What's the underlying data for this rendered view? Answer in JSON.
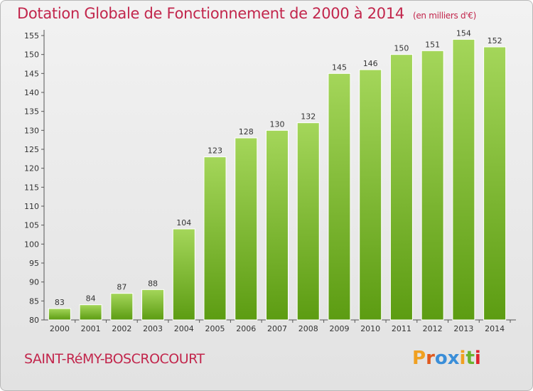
{
  "title": "Dotation Globale de Fonctionnement de 2000 à 2014",
  "subtitle": "(en milliers d'€)",
  "commune": "SAINT-RéMY-BOSCROCOURT",
  "logo": {
    "letters": [
      "P",
      "r",
      "o",
      "x",
      "i",
      "t",
      "i"
    ],
    "colors": [
      "#f0a020",
      "#e05a1e",
      "#3a8ed8",
      "#3a8ed8",
      "#f0a020",
      "#6ab42e",
      "#e0242c"
    ]
  },
  "chart_data": {
    "type": "bar",
    "title": "Dotation Globale de Fonctionnement de 2000 à 2014",
    "subtitle": "(en milliers d'€)",
    "categories": [
      "2000",
      "2001",
      "2002",
      "2003",
      "2004",
      "2005",
      "2006",
      "2007",
      "2008",
      "2009",
      "2010",
      "2011",
      "2012",
      "2013",
      "2014"
    ],
    "values": [
      83,
      84,
      87,
      88,
      104,
      123,
      128,
      130,
      132,
      145,
      146,
      150,
      151,
      154,
      152
    ],
    "ylim": [
      80,
      155
    ],
    "yticks": [
      80,
      85,
      90,
      95,
      100,
      105,
      110,
      115,
      120,
      125,
      130,
      135,
      140,
      145,
      150,
      155
    ],
    "grid": false,
    "bar_color": "#8cc43c"
  }
}
